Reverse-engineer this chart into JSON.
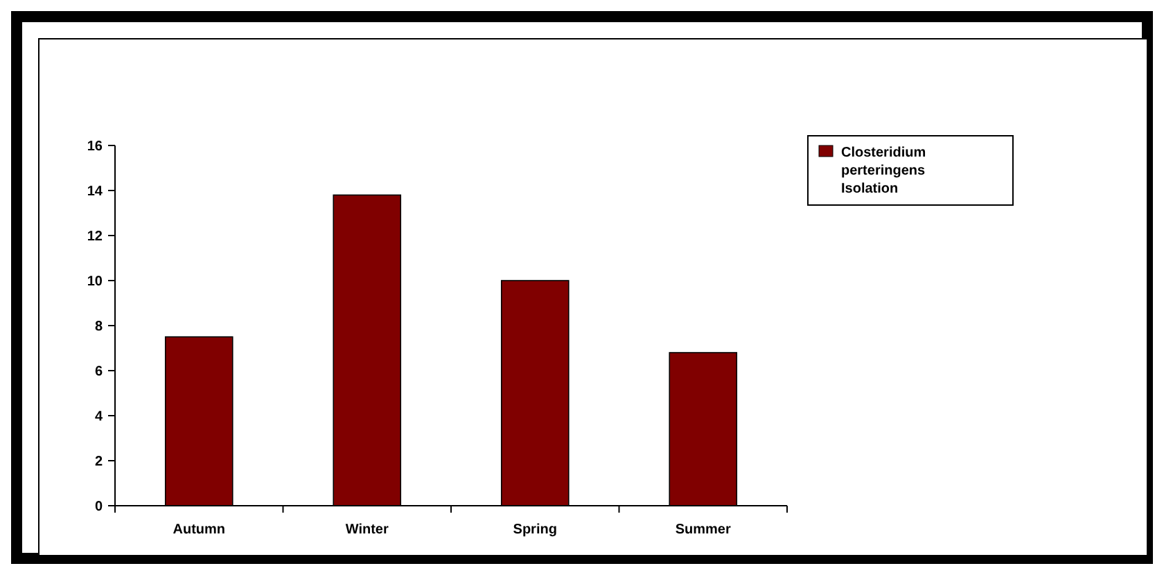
{
  "chart_data": {
    "type": "bar",
    "categories": [
      "Autumn",
      "Winter",
      "Spring",
      "Summer"
    ],
    "series": [
      {
        "name": "Closteridium perteringens Isolation",
        "color": "#800000",
        "values": [
          7.5,
          13.8,
          10,
          6.8
        ]
      }
    ],
    "ylim": [
      0,
      16
    ],
    "yticks": [
      0,
      2,
      4,
      6,
      8,
      10,
      12,
      14,
      16
    ],
    "grid": false,
    "legend": "top right"
  }
}
